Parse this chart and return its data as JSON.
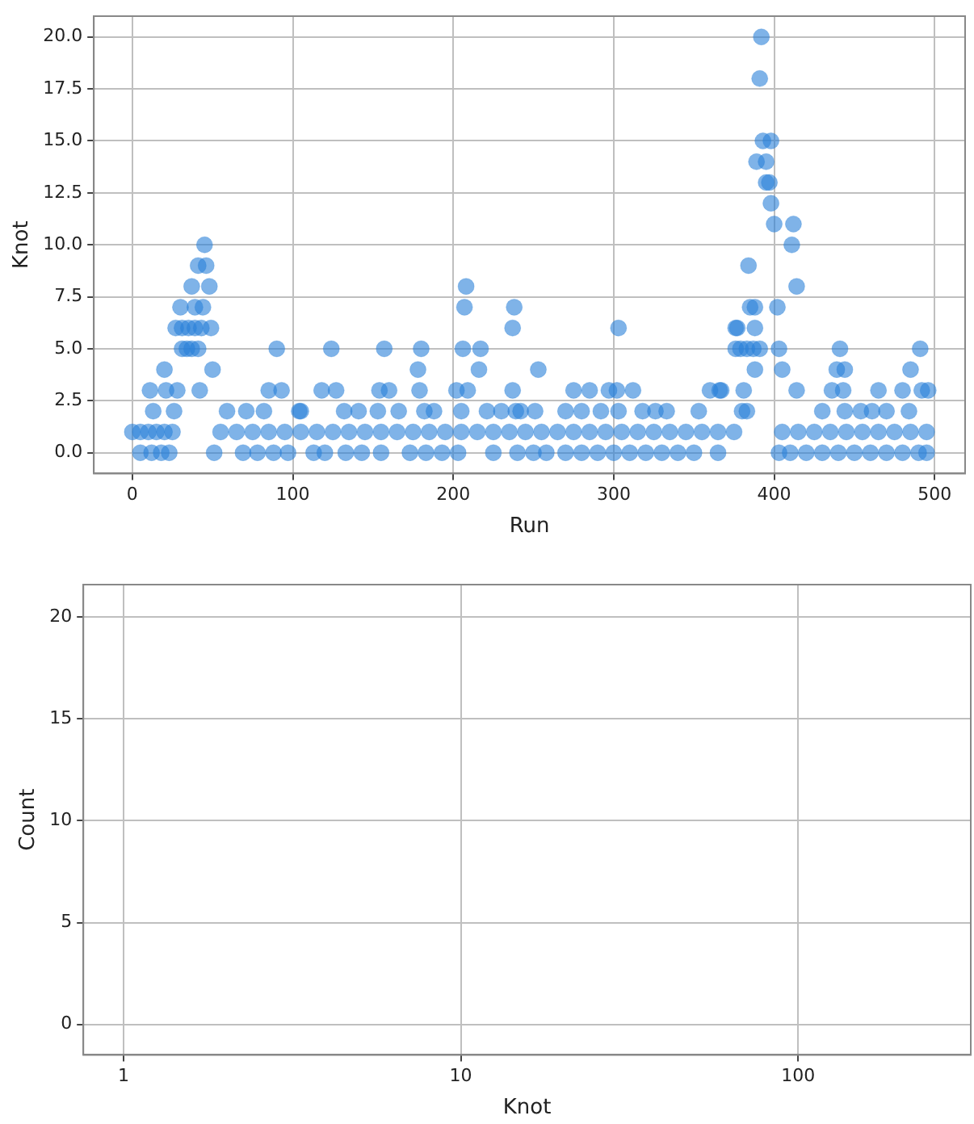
{
  "chart_data": [
    {
      "type": "scatter",
      "xlabel": "Run",
      "ylabel": "Knot",
      "grid": true,
      "marker": "circle",
      "xlim": [
        -24,
        519
      ],
      "xticks": [
        0,
        100,
        200,
        300,
        400,
        500
      ],
      "ylim": [
        -1,
        21
      ],
      "yticks": [
        {
          "value": 0,
          "label": "0.0"
        },
        {
          "value": 2.5,
          "label": "2.5"
        },
        {
          "value": 5,
          "label": "5.0"
        },
        {
          "value": 7.5,
          "label": "7.5"
        },
        {
          "value": 10,
          "label": "10.0"
        },
        {
          "value": 12.5,
          "label": "12.5"
        },
        {
          "value": 15,
          "label": "15.0"
        },
        {
          "value": 17.5,
          "label": "17.5"
        },
        {
          "value": 20,
          "label": "20.0"
        }
      ],
      "series": [
        {
          "color": "#2a80d8",
          "x": [
            0,
            5,
            10,
            15,
            20,
            25,
            55,
            65,
            75,
            85,
            95,
            105,
            115,
            125,
            135,
            145,
            155,
            165,
            175,
            185,
            195,
            205,
            215,
            225,
            235,
            245,
            255,
            265,
            275,
            285,
            295,
            305,
            315,
            325,
            335,
            345,
            355,
            365,
            375,
            405,
            415,
            425,
            435,
            445,
            455,
            465,
            475,
            485,
            495,
            5,
            12,
            18,
            23,
            51,
            69,
            78,
            88,
            97,
            113,
            120,
            133,
            143,
            155,
            173,
            183,
            193,
            203,
            225,
            240,
            250,
            258,
            270,
            280,
            290,
            300,
            310,
            320,
            330,
            340,
            350,
            365,
            403,
            410,
            420,
            430,
            440,
            450,
            460,
            470,
            480,
            490,
            495,
            45,
            41,
            46,
            37,
            48,
            30,
            39,
            44,
            27,
            31,
            35,
            39,
            43,
            49,
            31,
            34,
            37,
            41,
            90,
            20,
            50,
            11,
            21,
            28,
            42,
            85,
            93,
            13,
            26,
            59,
            71,
            82,
            104,
            208,
            207,
            238,
            237,
            124,
            157,
            180,
            206,
            217,
            178,
            216,
            118,
            127,
            154,
            160,
            179,
            202,
            209,
            237,
            105,
            132,
            141,
            153,
            166,
            182,
            188,
            205,
            221,
            230,
            239,
            303,
            376,
            376,
            253,
            275,
            285,
            297,
            302,
            312,
            360,
            367,
            242,
            251,
            270,
            280,
            292,
            303,
            318,
            326,
            333,
            353,
            400,
            412,
            411,
            414,
            384,
            385,
            388,
            402,
            377,
            388,
            379,
            383,
            387,
            391,
            403,
            441,
            491,
            388,
            405,
            439,
            444,
            485,
            366,
            381,
            414,
            436,
            443,
            465,
            480,
            492,
            496,
            380,
            383,
            430,
            444,
            454,
            461,
            470,
            484,
            392,
            391,
            393,
            398,
            389,
            395,
            395,
            397,
            398
          ],
          "values": [
            1,
            1,
            1,
            1,
            1,
            1,
            1,
            1,
            1,
            1,
            1,
            1,
            1,
            1,
            1,
            1,
            1,
            1,
            1,
            1,
            1,
            1,
            1,
            1,
            1,
            1,
            1,
            1,
            1,
            1,
            1,
            1,
            1,
            1,
            1,
            1,
            1,
            1,
            1,
            1,
            1,
            1,
            1,
            1,
            1,
            1,
            1,
            1,
            1,
            0,
            0,
            0,
            0,
            0,
            0,
            0,
            0,
            0,
            0,
            0,
            0,
            0,
            0,
            0,
            0,
            0,
            0,
            0,
            0,
            0,
            0,
            0,
            0,
            0,
            0,
            0,
            0,
            0,
            0,
            0,
            0,
            0,
            0,
            0,
            0,
            0,
            0,
            0,
            0,
            0,
            0,
            0,
            10,
            9,
            9,
            8,
            8,
            7,
            7,
            7,
            6,
            6,
            6,
            6,
            6,
            6,
            5,
            5,
            5,
            5,
            5,
            4,
            4,
            3,
            3,
            3,
            3,
            3,
            3,
            2,
            2,
            2,
            2,
            2,
            2,
            8,
            7,
            7,
            6,
            5,
            5,
            5,
            5,
            5,
            4,
            4,
            3,
            3,
            3,
            3,
            3,
            3,
            3,
            3,
            2,
            2,
            2,
            2,
            2,
            2,
            2,
            2,
            2,
            2,
            2,
            6,
            6,
            5,
            4,
            3,
            3,
            3,
            3,
            3,
            3,
            3,
            2,
            2,
            2,
            2,
            2,
            2,
            2,
            2,
            2,
            2,
            11,
            11,
            10,
            8,
            9,
            7,
            7,
            7,
            6,
            6,
            5,
            5,
            5,
            5,
            5,
            5,
            5,
            4,
            4,
            4,
            4,
            4,
            3,
            3,
            3,
            3,
            3,
            3,
            3,
            3,
            3,
            2,
            2,
            2,
            2,
            2,
            2,
            2,
            2,
            20,
            18,
            15,
            15,
            14,
            14,
            13,
            13,
            12
          ]
        }
      ]
    },
    {
      "type": "histogram",
      "xlabel": "Knot",
      "ylabel": "Count",
      "grid": true,
      "log": "x",
      "xlim": [
        0.76,
        325
      ],
      "xticks": [
        1,
        10,
        100
      ],
      "ylim": [
        -1.5,
        21.6
      ],
      "yticks": [
        0,
        5,
        10,
        15,
        20
      ]
    }
  ]
}
